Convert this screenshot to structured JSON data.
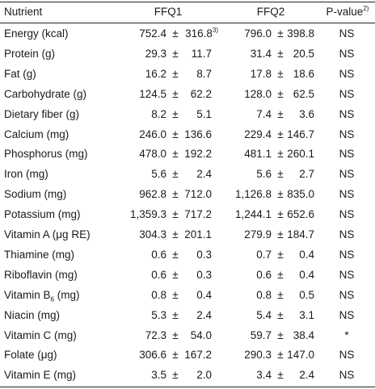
{
  "header": {
    "nutrient": "Nutrient",
    "ffq1": "FFQ1",
    "ffq2": "FFQ2",
    "pvalue": "P-value",
    "pvalue_sup": "2)"
  },
  "rows": [
    {
      "name": "Energy (kcal)",
      "f1_mean": "752.4",
      "f1_sd": "316.8",
      "f1_sup": "3)",
      "f2_mean": "796.0",
      "f2_sd": "398.8",
      "p": "NS"
    },
    {
      "name": "Protein (g)",
      "f1_mean": "29.3",
      "f1_sd": "11.7",
      "f2_mean": "31.4",
      "f2_sd": "20.5",
      "p": "NS"
    },
    {
      "name": "Fat (g)",
      "f1_mean": "16.2",
      "f1_sd": "8.7",
      "f2_mean": "17.8",
      "f2_sd": "18.6",
      "p": "NS"
    },
    {
      "name": "Carbohydrate (g)",
      "f1_mean": "124.5",
      "f1_sd": "62.2",
      "f2_mean": "128.0",
      "f2_sd": "62.5",
      "p": "NS"
    },
    {
      "name": "Dietary fiber (g)",
      "f1_mean": "8.2",
      "f1_sd": "5.1",
      "f2_mean": "7.4",
      "f2_sd": "3.6",
      "p": "NS"
    },
    {
      "name": "Calcium (mg)",
      "f1_mean": "246.0",
      "f1_sd": "136.6",
      "f2_mean": "229.4",
      "f2_sd": "146.7",
      "p": "NS"
    },
    {
      "name": "Phosphorus (mg)",
      "f1_mean": "478.0",
      "f1_sd": "192.2",
      "f2_mean": "481.1",
      "f2_sd": "260.1",
      "p": "NS"
    },
    {
      "name": "Iron (mg)",
      "f1_mean": "5.6",
      "f1_sd": "2.4",
      "f2_mean": "5.6",
      "f2_sd": "2.7",
      "p": "NS"
    },
    {
      "name": "Sodium (mg)",
      "f1_mean": "962.8",
      "f1_sd": "712.0",
      "f2_mean": "1,126.8",
      "f2_sd": "835.0",
      "p": "NS"
    },
    {
      "name": "Potassium (mg)",
      "f1_mean": "1,359.3",
      "f1_sd": "717.2",
      "f2_mean": "1,244.1",
      "f2_sd": "652.6",
      "p": "NS"
    },
    {
      "name": "Vitamin A (μg RE)",
      "f1_mean": "304.3",
      "f1_sd": "201.1",
      "f2_mean": "279.9",
      "f2_sd": "184.7",
      "p": "NS"
    },
    {
      "name": "Thiamine (mg)",
      "f1_mean": "0.6",
      "f1_sd": "0.3",
      "f2_mean": "0.7",
      "f2_sd": "0.4",
      "p": "NS"
    },
    {
      "name": "Riboflavin (mg)",
      "f1_mean": "0.6",
      "f1_sd": "0.3",
      "f2_mean": "0.6",
      "f2_sd": "0.4",
      "p": "NS"
    },
    {
      "name": "Vitamin B",
      "name_sub": "6",
      "name_after": " (mg)",
      "f1_mean": "0.8",
      "f1_sd": "0.4",
      "f2_mean": "0.8",
      "f2_sd": "0.5",
      "p": "NS"
    },
    {
      "name": "Niacin (mg)",
      "f1_mean": "5.3",
      "f1_sd": "2.4",
      "f2_mean": "5.4",
      "f2_sd": "3.1",
      "p": "NS"
    },
    {
      "name": "Vitamin C (mg)",
      "f1_mean": "72.3",
      "f1_sd": "54.0",
      "f2_mean": "59.7",
      "f2_sd": "38.4",
      "p": "*"
    },
    {
      "name": "Folate (μg)",
      "f1_mean": "306.6",
      "f1_sd": "167.2",
      "f2_mean": "290.3",
      "f2_sd": "147.0",
      "p": "NS"
    },
    {
      "name": "Vitamin E (mg)",
      "f1_mean": "3.5",
      "f1_sd": "2.0",
      "f2_mean": "3.4",
      "f2_sd": "2.4",
      "p": "NS"
    }
  ],
  "pm_symbol": "±"
}
